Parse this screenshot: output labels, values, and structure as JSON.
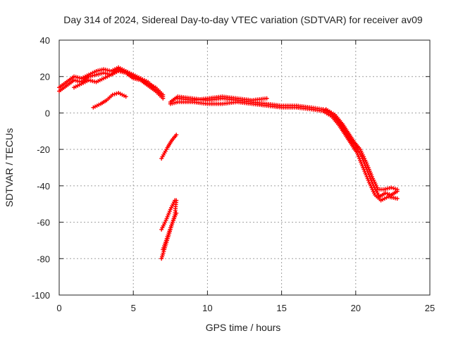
{
  "chart_data": {
    "type": "scatter",
    "title": "Day 314 of 2024, Sidereal Day-to-day VTEC variation (SDTVAR) for receiver av09",
    "xlabel": "GPS time / hours",
    "ylabel": "SDTVAR / TECUs",
    "xlim": [
      0,
      25
    ],
    "ylim": [
      -100,
      40
    ],
    "xticks": [
      0,
      5,
      10,
      15,
      20,
      25
    ],
    "yticks": [
      -100,
      -80,
      -60,
      -40,
      -20,
      0,
      20,
      40
    ],
    "grid": true,
    "marker": "plus",
    "series": [
      {
        "name": "SDTVAR",
        "color": "#ff0000",
        "tracks": [
          [
            [
              0,
              12
            ],
            [
              0.5,
              15
            ],
            [
              1,
              18
            ],
            [
              1.5,
              17
            ],
            [
              2,
              20
            ],
            [
              2.5,
              21
            ],
            [
              3,
              22
            ],
            [
              3.5,
              21
            ],
            [
              4,
              24
            ],
            [
              4.5,
              22
            ],
            [
              5,
              20
            ],
            [
              5.5,
              18
            ],
            [
              6,
              16
            ],
            [
              6.5,
              14
            ],
            [
              7,
              10
            ]
          ],
          [
            [
              0,
              14
            ],
            [
              0.5,
              17
            ],
            [
              1,
              20
            ],
            [
              1.5,
              19
            ],
            [
              2,
              21
            ],
            [
              2.5,
              23
            ],
            [
              3,
              24
            ],
            [
              3.5,
              23
            ],
            [
              4,
              25
            ],
            [
              4.5,
              23
            ],
            [
              5,
              21
            ],
            [
              5.5,
              19
            ],
            [
              6,
              17
            ],
            [
              6.5,
              13
            ],
            [
              7,
              9
            ]
          ],
          [
            [
              1,
              14
            ],
            [
              1.5,
              16
            ],
            [
              2,
              18
            ],
            [
              2.5,
              17
            ],
            [
              3,
              19
            ],
            [
              3.5,
              21
            ],
            [
              4,
              23
            ],
            [
              4.5,
              22
            ],
            [
              5,
              19
            ],
            [
              5.5,
              18
            ],
            [
              6,
              15
            ],
            [
              6.5,
              12
            ],
            [
              7,
              8
            ]
          ],
          [
            [
              2.3,
              3
            ],
            [
              2.8,
              5
            ],
            [
              3.2,
              7
            ],
            [
              3.6,
              10
            ],
            [
              4,
              11
            ],
            [
              4.5,
              9
            ]
          ],
          [
            [
              6.9,
              -25
            ],
            [
              7.3,
              -19
            ],
            [
              7.6,
              -15
            ],
            [
              7.9,
              -12
            ]
          ],
          [
            [
              6.9,
              -80
            ],
            [
              7.2,
              -72
            ],
            [
              7.5,
              -64
            ],
            [
              7.8,
              -56
            ],
            [
              7.9,
              -48
            ]
          ],
          [
            [
              6.9,
              -64
            ],
            [
              7.2,
              -59
            ],
            [
              7.5,
              -53
            ],
            [
              7.8,
              -48
            ]
          ],
          [
            [
              7,
              -75
            ],
            [
              7.3,
              -68
            ],
            [
              7.6,
              -61
            ],
            [
              7.9,
              -55
            ]
          ],
          [
            [
              7.5,
              6
            ],
            [
              8,
              9
            ],
            [
              9,
              8
            ],
            [
              10,
              7
            ],
            [
              11,
              8
            ],
            [
              12,
              7
            ],
            [
              13,
              6
            ],
            [
              14,
              5
            ],
            [
              15,
              4
            ],
            [
              16,
              4
            ],
            [
              17,
              3
            ],
            [
              17.8,
              2
            ]
          ],
          [
            [
              7.5,
              5
            ],
            [
              8,
              6
            ],
            [
              9,
              6
            ],
            [
              10,
              5
            ],
            [
              11,
              5
            ],
            [
              12,
              6
            ],
            [
              13,
              5
            ],
            [
              14,
              4
            ],
            [
              15,
              3
            ],
            [
              16,
              3
            ],
            [
              17,
              2
            ],
            [
              17.8,
              1
            ]
          ],
          [
            [
              8,
              8
            ],
            [
              9,
              7
            ],
            [
              10,
              8
            ],
            [
              11,
              9
            ],
            [
              12,
              8
            ],
            [
              13,
              7
            ],
            [
              14,
              8
            ]
          ],
          [
            [
              17.8,
              2
            ],
            [
              18.3,
              0
            ],
            [
              18.8,
              -4
            ],
            [
              19.2,
              -9
            ],
            [
              19.6,
              -14
            ],
            [
              20,
              -18
            ],
            [
              20.4,
              -24
            ],
            [
              20.8,
              -32
            ],
            [
              21.2,
              -40
            ],
            [
              21.6,
              -46
            ],
            [
              22,
              -44
            ],
            [
              22.4,
              -45
            ],
            [
              22.8,
              -43
            ]
          ],
          [
            [
              17.8,
              1
            ],
            [
              18.4,
              -2
            ],
            [
              18.9,
              -7
            ],
            [
              19.3,
              -12
            ],
            [
              19.7,
              -17
            ],
            [
              20.1,
              -22
            ],
            [
              20.5,
              -30
            ],
            [
              20.9,
              -38
            ],
            [
              21.3,
              -45
            ],
            [
              21.7,
              -48
            ],
            [
              22.2,
              -46
            ],
            [
              22.8,
              -47
            ]
          ],
          [
            [
              18,
              2
            ],
            [
              18.6,
              -1
            ],
            [
              19.1,
              -6
            ],
            [
              19.5,
              -11
            ],
            [
              19.9,
              -16
            ],
            [
              20.3,
              -20
            ],
            [
              20.7,
              -27
            ],
            [
              21.1,
              -35
            ],
            [
              21.5,
              -42
            ],
            [
              21.9,
              -42
            ],
            [
              22.4,
              -41
            ],
            [
              22.8,
              -42
            ]
          ]
        ]
      }
    ]
  }
}
